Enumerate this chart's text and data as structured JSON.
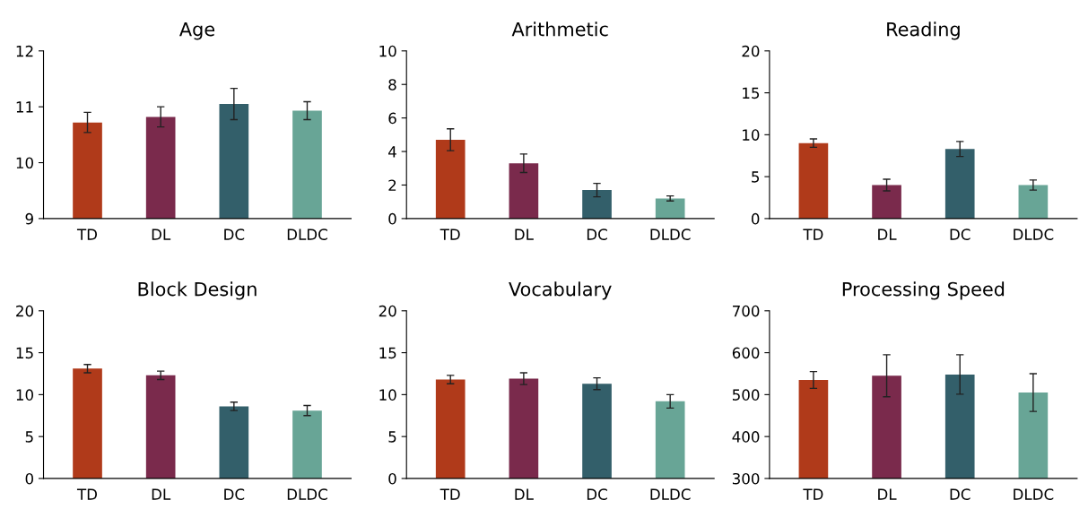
{
  "chart_data": [
    {
      "type": "bar",
      "title": "Age",
      "categories": [
        "TD",
        "DL",
        "DC",
        "DLDC"
      ],
      "values": [
        10.72,
        10.82,
        11.05,
        10.93
      ],
      "errors": [
        0.18,
        0.18,
        0.28,
        0.16
      ],
      "colors": [
        "#b03a1a",
        "#7a2a4c",
        "#335f6a",
        "#68a596"
      ],
      "ylim": [
        9,
        12
      ],
      "yticks": [
        9,
        10,
        11,
        12
      ],
      "grid": false
    },
    {
      "type": "bar",
      "title": "Arithmetic",
      "categories": [
        "TD",
        "DL",
        "DC",
        "DLDC"
      ],
      "values": [
        4.7,
        3.3,
        1.7,
        1.2
      ],
      "errors": [
        0.65,
        0.55,
        0.4,
        0.15
      ],
      "colors": [
        "#b03a1a",
        "#7a2a4c",
        "#335f6a",
        "#68a596"
      ],
      "ylim": [
        0,
        10
      ],
      "yticks": [
        0,
        2,
        4,
        6,
        8,
        10
      ],
      "grid": false
    },
    {
      "type": "bar",
      "title": "Reading",
      "categories": [
        "TD",
        "DL",
        "DC",
        "DLDC"
      ],
      "values": [
        9.0,
        4.0,
        8.3,
        4.0
      ],
      "errors": [
        0.5,
        0.7,
        0.9,
        0.6
      ],
      "colors": [
        "#b03a1a",
        "#7a2a4c",
        "#335f6a",
        "#68a596"
      ],
      "ylim": [
        0,
        20
      ],
      "yticks": [
        0,
        5,
        10,
        15,
        20
      ],
      "grid": false
    },
    {
      "type": "bar",
      "title": "Block Design",
      "categories": [
        "TD",
        "DL",
        "DC",
        "DLDC"
      ],
      "values": [
        13.1,
        12.3,
        8.6,
        8.1
      ],
      "errors": [
        0.5,
        0.5,
        0.5,
        0.6
      ],
      "colors": [
        "#b03a1a",
        "#7a2a4c",
        "#335f6a",
        "#68a596"
      ],
      "ylim": [
        0,
        20
      ],
      "yticks": [
        0,
        5,
        10,
        15,
        20
      ],
      "grid": false
    },
    {
      "type": "bar",
      "title": "Vocabulary",
      "categories": [
        "TD",
        "DL",
        "DC",
        "DLDC"
      ],
      "values": [
        11.8,
        11.9,
        11.3,
        9.2
      ],
      "errors": [
        0.5,
        0.7,
        0.7,
        0.8
      ],
      "colors": [
        "#b03a1a",
        "#7a2a4c",
        "#335f6a",
        "#68a596"
      ],
      "ylim": [
        0,
        20
      ],
      "yticks": [
        0,
        5,
        10,
        15,
        20
      ],
      "grid": false
    },
    {
      "type": "bar",
      "title": "Processing Speed",
      "categories": [
        "TD",
        "DL",
        "DC",
        "DLDC"
      ],
      "values": [
        535,
        545,
        548,
        505
      ],
      "errors": [
        20,
        50,
        47,
        45
      ],
      "colors": [
        "#b03a1a",
        "#7a2a4c",
        "#335f6a",
        "#68a596"
      ],
      "ylim": [
        300,
        700
      ],
      "yticks": [
        300,
        400,
        500,
        600,
        700
      ],
      "grid": false
    }
  ]
}
